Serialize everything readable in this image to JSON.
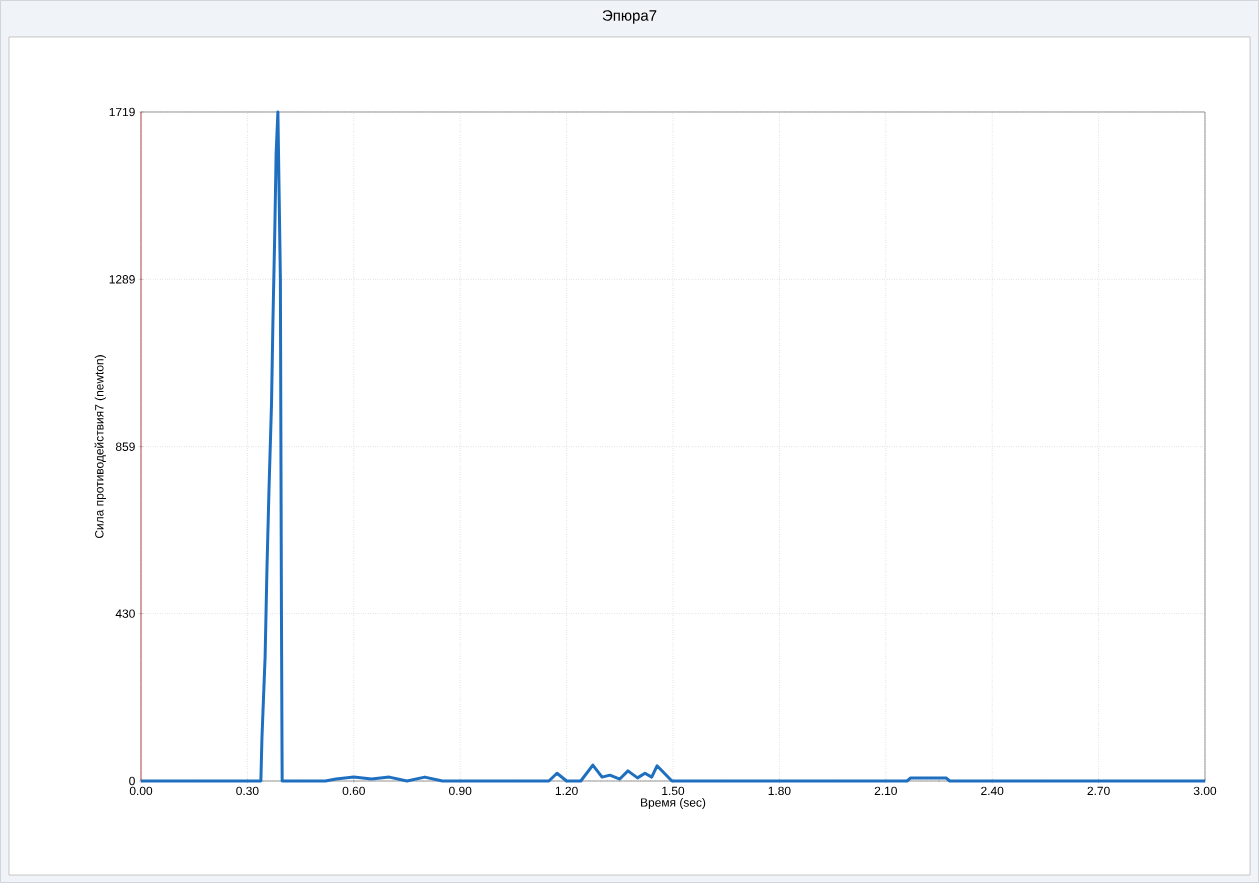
{
  "chart_data": {
    "type": "line",
    "title": "Эпюра7",
    "xlabel": "Время (sec)",
    "ylabel": "Сила противодействия7  (newton)",
    "x": [
      0,
      0.338,
      0.341,
      0.35,
      0.355,
      0.361,
      0.368,
      0.372,
      0.377,
      0.381,
      0.386,
      0.393,
      0.396,
      0.398,
      0.45,
      0.52,
      0.55,
      0.6,
      0.65,
      0.7,
      0.75,
      0.8,
      0.85,
      1.15,
      1.173,
      1.2,
      1.24,
      1.274,
      1.3,
      1.322,
      1.35,
      1.373,
      1.4,
      1.421,
      1.44,
      1.455,
      1.497,
      2.16,
      2.17,
      2.27,
      2.28,
      3
    ],
    "values": [
      0,
      0,
      110,
      321,
      540,
      753,
      969,
      1182,
      1401,
      1612,
      1719,
      1290,
      432,
      0,
      0,
      0,
      5,
      10,
      5,
      10,
      0,
      10,
      0,
      0,
      20,
      0,
      0,
      41,
      10,
      15,
      5,
      26,
      8,
      20,
      10,
      39,
      0,
      0,
      8,
      8,
      0,
      0
    ],
    "color": "#1f6fc1",
    "line_style": "solid",
    "grid": true,
    "xlim": [
      0,
      3
    ],
    "ylim": [
      0,
      1719
    ],
    "xticks": [
      {
        "value": 0,
        "label": "0.00"
      },
      {
        "value": 0.3,
        "label": "0.30"
      },
      {
        "value": 0.6,
        "label": "0.60"
      },
      {
        "value": 0.9,
        "label": "0.90"
      },
      {
        "value": 1.2,
        "label": "1.20"
      },
      {
        "value": 1.5,
        "label": "1.50"
      },
      {
        "value": 1.8,
        "label": "1.80"
      },
      {
        "value": 2.1,
        "label": "2.10"
      },
      {
        "value": 2.4,
        "label": "2.40"
      },
      {
        "value": 2.7,
        "label": "2.70"
      },
      {
        "value": 3,
        "label": "3.00"
      }
    ],
    "yticks": [
      0,
      430,
      859,
      1289,
      1719
    ]
  }
}
